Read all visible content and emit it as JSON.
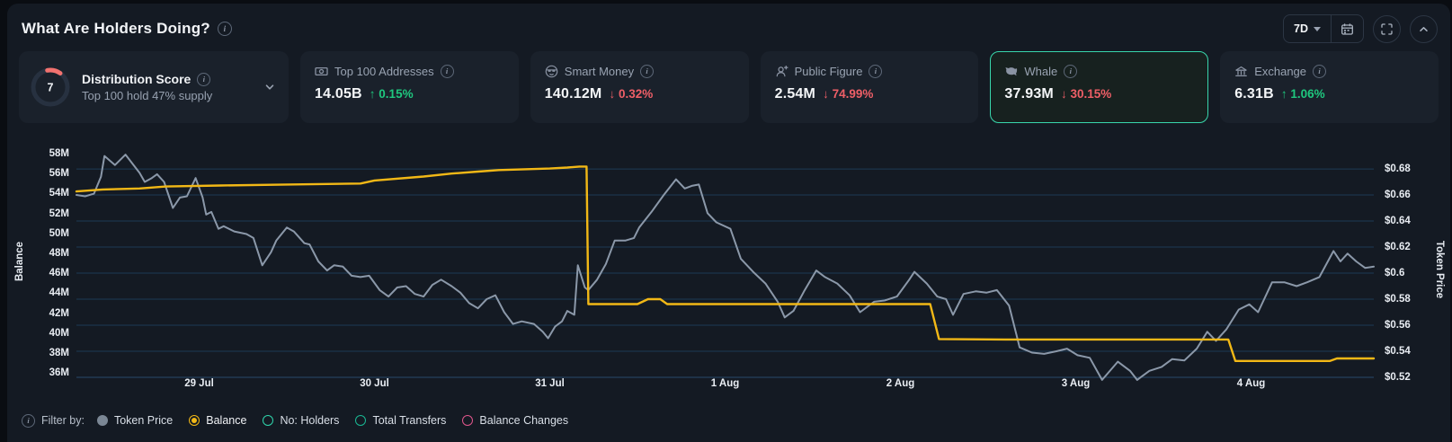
{
  "header": {
    "title": "What Are Holders Doing?",
    "range_label": "7D"
  },
  "cards": {
    "distribution": {
      "score": "7",
      "title": "Distribution Score",
      "subtitle": "Top 100 hold 47% supply"
    },
    "stats": [
      {
        "id": "top-100-addresses",
        "label": "Top 100 Addresses",
        "value": "14.05B",
        "change": "↑ 0.15%",
        "direction": "up",
        "icon": "banknote-icon"
      },
      {
        "id": "smart-money",
        "label": "Smart Money",
        "value": "140.12M",
        "change": "↓ 0.32%",
        "direction": "down",
        "icon": "smart-money-icon"
      },
      {
        "id": "public-figure",
        "label": "Public Figure",
        "value": "2.54M",
        "change": "↓ 74.99%",
        "direction": "down",
        "icon": "public-figure-icon"
      },
      {
        "id": "whale",
        "label": "Whale",
        "value": "37.93M",
        "change": "↓ 30.15%",
        "direction": "down",
        "icon": "whale-icon",
        "selected": true
      },
      {
        "id": "exchange",
        "label": "Exchange",
        "value": "6.31B",
        "change": "↑ 1.06%",
        "direction": "up",
        "icon": "bank-icon"
      }
    ]
  },
  "legend": {
    "prefix": "Filter by:",
    "items": [
      {
        "label": "Token Price",
        "swatch": "dot",
        "color": "#7b8795",
        "selected": false
      },
      {
        "label": "Balance",
        "swatch": "radio",
        "color": "#f2b816",
        "selected": true
      },
      {
        "label": "No: Holders",
        "swatch": "ring",
        "color": "#2fd5ac",
        "selected": false
      },
      {
        "label": "Total Transfers",
        "swatch": "ring",
        "color": "#19b893",
        "selected": false
      },
      {
        "label": "Balance Changes",
        "swatch": "ring",
        "color": "#e0568c",
        "selected": false
      }
    ]
  },
  "colors": {
    "up": "#1fc77e",
    "down": "#ef5f67",
    "selected_card_border": "#38d6ac",
    "balance_line": "#f2b816",
    "price_line": "#8b98a9",
    "grid": "#1d3a54",
    "gauge_arc": "#f2726f"
  },
  "chart_data": {
    "type": "line",
    "xlim": [
      0.3,
      7.7
    ],
    "x_unit": "days, 1 = 29 Jul ... 7 = 4 Aug",
    "x_ticks": [
      {
        "v": 1,
        "label": "29 Jul"
      },
      {
        "v": 2,
        "label": "30 Jul"
      },
      {
        "v": 3,
        "label": "31 Jul"
      },
      {
        "v": 4,
        "label": "1 Aug"
      },
      {
        "v": 5,
        "label": "2 Aug"
      },
      {
        "v": 6,
        "label": "3 Aug"
      },
      {
        "v": 7,
        "label": "4 Aug"
      }
    ],
    "left_axis": {
      "label": "Balance",
      "unit": "M tokens",
      "lim": [
        35.56,
        59.44
      ],
      "ticks": [
        {
          "v": 58,
          "label": "58M"
        },
        {
          "v": 56,
          "label": "56M"
        },
        {
          "v": 54,
          "label": "54M"
        },
        {
          "v": 52,
          "label": "52M"
        },
        {
          "v": 50,
          "label": "50M"
        },
        {
          "v": 48,
          "label": "48M"
        },
        {
          "v": 46,
          "label": "46M"
        },
        {
          "v": 44,
          "label": "44M"
        },
        {
          "v": 42,
          "label": "42M"
        },
        {
          "v": 40,
          "label": "40M"
        },
        {
          "v": 38,
          "label": "38M"
        },
        {
          "v": 36,
          "label": "36M"
        }
      ]
    },
    "right_axis": {
      "label": "Token Price",
      "unit": "USD",
      "lim": [
        0.52,
        0.7028
      ],
      "ticks": [
        {
          "v": 0.68,
          "label": "$0.68"
        },
        {
          "v": 0.66,
          "label": "$0.66"
        },
        {
          "v": 0.64,
          "label": "$0.64"
        },
        {
          "v": 0.62,
          "label": "$0.62"
        },
        {
          "v": 0.6,
          "label": "$0.6"
        },
        {
          "v": 0.58,
          "label": "$0.58"
        },
        {
          "v": 0.56,
          "label": "$0.56"
        },
        {
          "v": 0.54,
          "label": "$0.54"
        },
        {
          "v": 0.52,
          "label": "$0.52"
        }
      ]
    },
    "grid": "horizontal gridlines aligned to right-axis ticks",
    "series": [
      {
        "name": "Token Price",
        "axis": "right",
        "color": "#8b98a9",
        "points": [
          [
            0.3,
            0.66
          ],
          [
            0.35,
            0.659
          ],
          [
            0.4,
            0.661
          ],
          [
            0.44,
            0.674
          ],
          [
            0.46,
            0.69
          ],
          [
            0.52,
            0.683
          ],
          [
            0.58,
            0.691
          ],
          [
            0.66,
            0.677
          ],
          [
            0.69,
            0.67
          ],
          [
            0.73,
            0.673
          ],
          [
            0.76,
            0.676
          ],
          [
            0.8,
            0.67
          ],
          [
            0.85,
            0.65
          ],
          [
            0.89,
            0.658
          ],
          [
            0.93,
            0.659
          ],
          [
            0.98,
            0.673
          ],
          [
            1.02,
            0.658
          ],
          [
            1.04,
            0.645
          ],
          [
            1.07,
            0.647
          ],
          [
            1.11,
            0.634
          ],
          [
            1.14,
            0.636
          ],
          [
            1.2,
            0.632
          ],
          [
            1.27,
            0.63
          ],
          [
            1.31,
            0.627
          ],
          [
            1.36,
            0.606
          ],
          [
            1.41,
            0.616
          ],
          [
            1.44,
            0.625
          ],
          [
            1.5,
            0.635
          ],
          [
            1.54,
            0.632
          ],
          [
            1.6,
            0.623
          ],
          [
            1.63,
            0.622
          ],
          [
            1.68,
            0.609
          ],
          [
            1.73,
            0.602
          ],
          [
            1.77,
            0.606
          ],
          [
            1.82,
            0.605
          ],
          [
            1.87,
            0.598
          ],
          [
            1.92,
            0.597
          ],
          [
            1.97,
            0.598
          ],
          [
            2.03,
            0.587
          ],
          [
            2.08,
            0.582
          ],
          [
            2.13,
            0.589
          ],
          [
            2.18,
            0.59
          ],
          [
            2.23,
            0.584
          ],
          [
            2.28,
            0.582
          ],
          [
            2.33,
            0.591
          ],
          [
            2.38,
            0.595
          ],
          [
            2.44,
            0.59
          ],
          [
            2.49,
            0.585
          ],
          [
            2.54,
            0.577
          ],
          [
            2.59,
            0.573
          ],
          [
            2.64,
            0.58
          ],
          [
            2.69,
            0.583
          ],
          [
            2.74,
            0.57
          ],
          [
            2.79,
            0.561
          ],
          [
            2.84,
            0.563
          ],
          [
            2.91,
            0.561
          ],
          [
            2.96,
            0.555
          ],
          [
            2.99,
            0.55
          ],
          [
            3.03,
            0.559
          ],
          [
            3.07,
            0.563
          ],
          [
            3.1,
            0.571
          ],
          [
            3.14,
            0.568
          ],
          [
            3.16,
            0.606
          ],
          [
            3.2,
            0.589
          ],
          [
            3.22,
            0.587
          ],
          [
            3.27,
            0.595
          ],
          [
            3.32,
            0.607
          ],
          [
            3.37,
            0.625
          ],
          [
            3.43,
            0.625
          ],
          [
            3.48,
            0.627
          ],
          [
            3.51,
            0.635
          ],
          [
            3.58,
            0.647
          ],
          [
            3.65,
            0.66
          ],
          [
            3.72,
            0.672
          ],
          [
            3.77,
            0.665
          ],
          [
            3.81,
            0.667
          ],
          [
            3.85,
            0.668
          ],
          [
            3.9,
            0.646
          ],
          [
            3.95,
            0.639
          ],
          [
            4.03,
            0.634
          ],
          [
            4.09,
            0.611
          ],
          [
            4.16,
            0.601
          ],
          [
            4.23,
            0.592
          ],
          [
            4.3,
            0.578
          ],
          [
            4.34,
            0.566
          ],
          [
            4.39,
            0.571
          ],
          [
            4.45,
            0.586
          ],
          [
            4.52,
            0.602
          ],
          [
            4.57,
            0.597
          ],
          [
            4.64,
            0.592
          ],
          [
            4.71,
            0.583
          ],
          [
            4.77,
            0.57
          ],
          [
            4.85,
            0.578
          ],
          [
            4.91,
            0.579
          ],
          [
            4.98,
            0.582
          ],
          [
            5.05,
            0.595
          ],
          [
            5.08,
            0.601
          ],
          [
            5.15,
            0.592
          ],
          [
            5.21,
            0.582
          ],
          [
            5.26,
            0.58
          ],
          [
            5.3,
            0.568
          ],
          [
            5.36,
            0.584
          ],
          [
            5.43,
            0.586
          ],
          [
            5.49,
            0.585
          ],
          [
            5.55,
            0.587
          ],
          [
            5.62,
            0.575
          ],
          [
            5.68,
            0.543
          ],
          [
            5.75,
            0.539
          ],
          [
            5.82,
            0.538
          ],
          [
            5.89,
            0.54
          ],
          [
            5.95,
            0.542
          ],
          [
            6.01,
            0.537
          ],
          [
            6.08,
            0.535
          ],
          [
            6.15,
            0.518
          ],
          [
            6.24,
            0.532
          ],
          [
            6.31,
            0.525
          ],
          [
            6.35,
            0.518
          ],
          [
            6.42,
            0.525
          ],
          [
            6.49,
            0.528
          ],
          [
            6.55,
            0.534
          ],
          [
            6.62,
            0.533
          ],
          [
            6.69,
            0.542
          ],
          [
            6.75,
            0.555
          ],
          [
            6.8,
            0.548
          ],
          [
            6.86,
            0.557
          ],
          [
            6.93,
            0.572
          ],
          [
            6.99,
            0.576
          ],
          [
            7.04,
            0.57
          ],
          [
            7.12,
            0.593
          ],
          [
            7.19,
            0.593
          ],
          [
            7.26,
            0.59
          ],
          [
            7.32,
            0.593
          ],
          [
            7.39,
            0.597
          ],
          [
            7.47,
            0.617
          ],
          [
            7.51,
            0.609
          ],
          [
            7.55,
            0.615
          ],
          [
            7.6,
            0.609
          ],
          [
            7.65,
            0.604
          ],
          [
            7.7,
            0.605
          ]
        ]
      },
      {
        "name": "Balance",
        "axis": "left",
        "color": "#f2b816",
        "points": [
          [
            0.3,
            54.2
          ],
          [
            0.45,
            54.4
          ],
          [
            0.66,
            54.5
          ],
          [
            0.81,
            54.7
          ],
          [
            1.12,
            54.8
          ],
          [
            1.5,
            54.9
          ],
          [
            1.92,
            55.0
          ],
          [
            2.0,
            55.3
          ],
          [
            2.28,
            55.7
          ],
          [
            2.44,
            56.0
          ],
          [
            2.59,
            56.2
          ],
          [
            2.71,
            56.35
          ],
          [
            3.0,
            56.5
          ],
          [
            3.1,
            56.6
          ],
          [
            3.17,
            56.7
          ],
          [
            3.21,
            56.7
          ],
          [
            3.22,
            42.9
          ],
          [
            3.5,
            42.9
          ],
          [
            3.56,
            43.4
          ],
          [
            3.63,
            43.4
          ],
          [
            3.67,
            42.9
          ],
          [
            4.2,
            42.9
          ],
          [
            5.0,
            42.9
          ],
          [
            5.17,
            42.9
          ],
          [
            5.22,
            39.4
          ],
          [
            5.6,
            39.35
          ],
          [
            6.0,
            39.35
          ],
          [
            6.5,
            39.35
          ],
          [
            6.87,
            39.35
          ],
          [
            6.91,
            37.2
          ],
          [
            7.2,
            37.2
          ],
          [
            7.45,
            37.2
          ],
          [
            7.49,
            37.45
          ],
          [
            7.7,
            37.45
          ]
        ]
      }
    ]
  }
}
